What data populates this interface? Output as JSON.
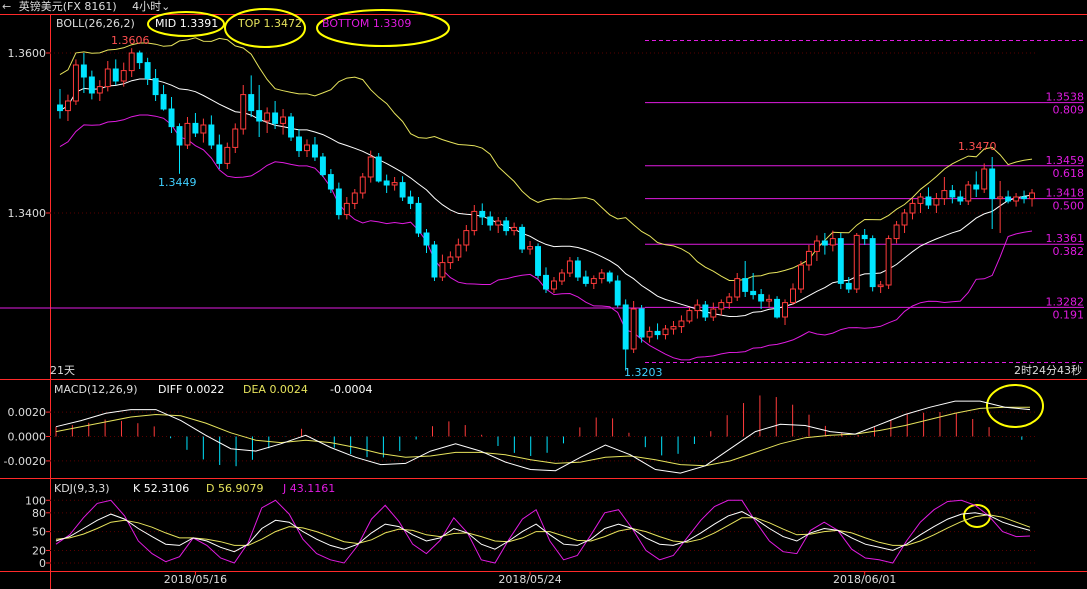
{
  "window": {
    "back_icon": "arrow-back-icon",
    "symbol": "英镑美元(FX 8161)",
    "timeframe": "4小时",
    "timeframe_icon": "chevron-down-icon"
  },
  "colors": {
    "bg": "#000000",
    "up": "#ff3b3b",
    "down": "#00e5ff",
    "mid": "#ffffff",
    "top": "#e6e35c",
    "bottom": "#e01be0",
    "fib": "#e01be0",
    "axis": "#ff2a2a",
    "diff": "#ffffff",
    "dea": "#e6e35c",
    "k": "#ffffff",
    "d": "#e6e35c",
    "j": "#e01be0",
    "annot": "#ffff00",
    "text": "#dddddd",
    "low_label": "#40d0ff",
    "high_label": "#ff5050"
  },
  "chart_data": [
    {
      "type": "candlestick",
      "title": "BOLL(26,26,2)",
      "header": {
        "name": "BOLL(26,26,2)",
        "mid": "MID 1.3391",
        "top": "TOP 1.3472",
        "bottom": "BOTTOM 1.3309"
      },
      "ylim": [
        1.3195,
        1.3625
      ],
      "y_ticks": [
        "1.3600",
        "1.3400"
      ],
      "y_tick_values": [
        1.36,
        1.34
      ],
      "x_labels": [
        {
          "label": "2018/05/16",
          "index": 17
        },
        {
          "label": "2018/05/24",
          "index": 59
        },
        {
          "label": "2018/06/01",
          "index": 101
        }
      ],
      "annotations": {
        "high": "1.3606",
        "low_1": "1.3449",
        "low_2": "1.3203",
        "high_2": "1.3470",
        "days": "21天",
        "countdown": "2时24分43秒"
      },
      "fib_levels": [
        {
          "price": 1.3538,
          "label": "1.3538",
          "ratio": "0.809"
        },
        {
          "price": 1.3459,
          "label": "1.3459",
          "ratio": "0.618"
        },
        {
          "price": 1.3418,
          "label": "1.3418",
          "ratio": "0.500"
        },
        {
          "price": 1.3361,
          "label": "1.3361",
          "ratio": "0.382"
        },
        {
          "price": 1.3282,
          "label": "1.3282",
          "ratio": "0.191"
        }
      ],
      "ohlc": [
        [
          1.3535,
          1.3555,
          1.3518,
          1.3528
        ],
        [
          1.3528,
          1.3548,
          1.3515,
          1.354
        ],
        [
          1.354,
          1.3592,
          1.3535,
          1.3585
        ],
        [
          1.3585,
          1.36,
          1.355,
          1.357
        ],
        [
          1.357,
          1.3578,
          1.3542,
          1.355
        ],
        [
          1.355,
          1.3566,
          1.354,
          1.3558
        ],
        [
          1.3558,
          1.359,
          1.3552,
          1.358
        ],
        [
          1.358,
          1.3592,
          1.356,
          1.3565
        ],
        [
          1.3565,
          1.3588,
          1.3558,
          1.3578
        ],
        [
          1.3578,
          1.3606,
          1.357,
          1.36
        ],
        [
          1.36,
          1.3603,
          1.358,
          1.3588
        ],
        [
          1.3588,
          1.3594,
          1.356,
          1.3568
        ],
        [
          1.3568,
          1.358,
          1.354,
          1.3548
        ],
        [
          1.3548,
          1.356,
          1.3528,
          1.353
        ],
        [
          1.353,
          1.3545,
          1.35,
          1.3508
        ],
        [
          1.3508,
          1.3512,
          1.3449,
          1.3485
        ],
        [
          1.3485,
          1.352,
          1.348,
          1.3512
        ],
        [
          1.3512,
          1.3525,
          1.3495,
          1.35
        ],
        [
          1.35,
          1.3518,
          1.3488,
          1.351
        ],
        [
          1.351,
          1.3522,
          1.348,
          1.3485
        ],
        [
          1.3485,
          1.3498,
          1.3455,
          1.3462
        ],
        [
          1.3462,
          1.3488,
          1.3455,
          1.3482
        ],
        [
          1.3482,
          1.3512,
          1.3475,
          1.3505
        ],
        [
          1.3505,
          1.356,
          1.3498,
          1.3548
        ],
        [
          1.3548,
          1.3572,
          1.352,
          1.3528
        ],
        [
          1.3528,
          1.356,
          1.3495,
          1.3515
        ],
        [
          1.3515,
          1.3532,
          1.35,
          1.3525
        ],
        [
          1.3525,
          1.354,
          1.3505,
          1.3512
        ],
        [
          1.3512,
          1.353,
          1.3498,
          1.352
        ],
        [
          1.352,
          1.3525,
          1.349,
          1.3495
        ],
        [
          1.3495,
          1.3505,
          1.347,
          1.3478
        ],
        [
          1.3478,
          1.3492,
          1.347,
          1.3485
        ],
        [
          1.3485,
          1.3495,
          1.3465,
          1.347
        ],
        [
          1.347,
          1.3475,
          1.3445,
          1.3448
        ],
        [
          1.3448,
          1.3455,
          1.3425,
          1.343
        ],
        [
          1.343,
          1.3438,
          1.3392,
          1.3398
        ],
        [
          1.3398,
          1.342,
          1.3392,
          1.3412
        ],
        [
          1.3412,
          1.343,
          1.3405,
          1.3425
        ],
        [
          1.3425,
          1.345,
          1.3418,
          1.3445
        ],
        [
          1.3445,
          1.3478,
          1.3438,
          1.347
        ],
        [
          1.347,
          1.3475,
          1.3438,
          1.344
        ],
        [
          1.344,
          1.3448,
          1.3425,
          1.3435
        ],
        [
          1.3435,
          1.3445,
          1.3428,
          1.3438
        ],
        [
          1.3438,
          1.3446,
          1.3415,
          1.342
        ],
        [
          1.342,
          1.3428,
          1.3405,
          1.3412
        ],
        [
          1.3412,
          1.342,
          1.337,
          1.3375
        ],
        [
          1.3375,
          1.338,
          1.335,
          1.336
        ],
        [
          1.336,
          1.3365,
          1.3315,
          1.332
        ],
        [
          1.332,
          1.3348,
          1.3315,
          1.3338
        ],
        [
          1.3338,
          1.3352,
          1.333,
          1.3345
        ],
        [
          1.3345,
          1.3368,
          1.334,
          1.336
        ],
        [
          1.336,
          1.3385,
          1.3352,
          1.3378
        ],
        [
          1.3378,
          1.341,
          1.3372,
          1.3402
        ],
        [
          1.3402,
          1.3412,
          1.3385,
          1.3395
        ],
        [
          1.3395,
          1.3402,
          1.3378,
          1.3385
        ],
        [
          1.3385,
          1.3395,
          1.3375,
          1.339
        ],
        [
          1.339,
          1.3395,
          1.3372,
          1.3378
        ],
        [
          1.3378,
          1.3388,
          1.3372,
          1.3382
        ],
        [
          1.3382,
          1.3386,
          1.335,
          1.3355
        ],
        [
          1.3355,
          1.3365,
          1.3348,
          1.3358
        ],
        [
          1.3358,
          1.3362,
          1.3318,
          1.3322
        ],
        [
          1.3322,
          1.3332,
          1.33,
          1.3305
        ],
        [
          1.3305,
          1.332,
          1.33,
          1.3315
        ],
        [
          1.3315,
          1.333,
          1.331,
          1.3325
        ],
        [
          1.3325,
          1.3345,
          1.332,
          1.334
        ],
        [
          1.334,
          1.3345,
          1.3315,
          1.332
        ],
        [
          1.332,
          1.3328,
          1.3308,
          1.3312
        ],
        [
          1.3312,
          1.3322,
          1.3305,
          1.3318
        ],
        [
          1.3318,
          1.333,
          1.3312,
          1.3325
        ],
        [
          1.3325,
          1.3328,
          1.3312,
          1.3315
        ],
        [
          1.3315,
          1.3322,
          1.3282,
          1.3285
        ],
        [
          1.3285,
          1.3292,
          1.3203,
          1.323
        ],
        [
          1.323,
          1.329,
          1.3225,
          1.328
        ],
        [
          1.328,
          1.3285,
          1.3238,
          1.3245
        ],
        [
          1.3245,
          1.3258,
          1.3238,
          1.3252
        ],
        [
          1.3252,
          1.3262,
          1.3242,
          1.3248
        ],
        [
          1.3248,
          1.326,
          1.3242,
          1.3255
        ],
        [
          1.3255,
          1.3265,
          1.3248,
          1.3258
        ],
        [
          1.3258,
          1.3272,
          1.325,
          1.3265
        ],
        [
          1.3265,
          1.3282,
          1.3262,
          1.3278
        ],
        [
          1.3278,
          1.3292,
          1.3268,
          1.3285
        ],
        [
          1.3285,
          1.329,
          1.3265,
          1.327
        ],
        [
          1.327,
          1.3288,
          1.3265,
          1.328
        ],
        [
          1.328,
          1.3292,
          1.3272,
          1.3288
        ],
        [
          1.3288,
          1.33,
          1.328,
          1.3295
        ],
        [
          1.3295,
          1.3325,
          1.329,
          1.3318
        ],
        [
          1.3318,
          1.334,
          1.3295,
          1.3302
        ],
        [
          1.3302,
          1.3325,
          1.3292,
          1.3298
        ],
        [
          1.3298,
          1.3305,
          1.328,
          1.329
        ],
        [
          1.329,
          1.3298,
          1.3282,
          1.3292
        ],
        [
          1.3292,
          1.3296,
          1.3268,
          1.327
        ],
        [
          1.327,
          1.3292,
          1.326,
          1.3288
        ],
        [
          1.3288,
          1.3312,
          1.3285,
          1.3305
        ],
        [
          1.3305,
          1.334,
          1.33,
          1.3335
        ],
        [
          1.3335,
          1.336,
          1.3328,
          1.3352
        ],
        [
          1.3352,
          1.3372,
          1.334,
          1.3365
        ],
        [
          1.3365,
          1.3375,
          1.3348,
          1.336
        ],
        [
          1.336,
          1.3378,
          1.3352,
          1.3368
        ],
        [
          1.3368,
          1.3375,
          1.3305,
          1.3312
        ],
        [
          1.3312,
          1.332,
          1.33,
          1.3305
        ],
        [
          1.3305,
          1.3375,
          1.33,
          1.3372
        ],
        [
          1.3372,
          1.338,
          1.336,
          1.3368
        ],
        [
          1.3368,
          1.3372,
          1.3302,
          1.3308
        ],
        [
          1.3308,
          1.3315,
          1.33,
          1.331
        ],
        [
          1.331,
          1.3372,
          1.3305,
          1.3368
        ],
        [
          1.3368,
          1.339,
          1.3362,
          1.3385
        ],
        [
          1.3385,
          1.3405,
          1.3375,
          1.34
        ],
        [
          1.34,
          1.3418,
          1.3392,
          1.3412
        ],
        [
          1.3412,
          1.3425,
          1.34,
          1.342
        ],
        [
          1.342,
          1.3432,
          1.3405,
          1.341
        ],
        [
          1.341,
          1.3425,
          1.34,
          1.3418
        ],
        [
          1.3418,
          1.3445,
          1.341,
          1.3428
        ],
        [
          1.3428,
          1.3435,
          1.3412,
          1.342
        ],
        [
          1.342,
          1.3428,
          1.341,
          1.3415
        ],
        [
          1.3415,
          1.344,
          1.341,
          1.3435
        ],
        [
          1.3435,
          1.3452,
          1.342,
          1.343
        ],
        [
          1.343,
          1.3462,
          1.3425,
          1.3455
        ],
        [
          1.3455,
          1.347,
          1.338,
          1.3418
        ],
        [
          1.3418,
          1.344,
          1.3375,
          1.342
        ],
        [
          1.342,
          1.3428,
          1.3412,
          1.3415
        ],
        [
          1.3415,
          1.3425,
          1.3408,
          1.342
        ],
        [
          1.342,
          1.3428,
          1.3412,
          1.3418
        ],
        [
          1.3418,
          1.343,
          1.3408,
          1.3425
        ]
      ]
    },
    {
      "type": "line",
      "title": "MACD(12,26,9)",
      "header": {
        "name": "MACD(12,26,9)",
        "diff": "DIFF 0.0022",
        "dea": "DEA 0.0024",
        "macd": "-0.0004"
      },
      "ylim": [
        -0.0034,
        0.0034
      ],
      "y_ticks": [
        "0.0020",
        "0.0000",
        "-0.0020"
      ],
      "y_tick_values": [
        0.002,
        0.0,
        -0.002
      ],
      "series": [
        {
          "name": "DIFF",
          "values": [
            0.0008,
            0.0013,
            0.0019,
            0.0022,
            0.0022,
            0.0013,
            0.0001,
            -0.001,
            -0.0012,
            -0.0006,
            0.0001,
            -0.0009,
            -0.0017,
            -0.0023,
            -0.0022,
            -0.0012,
            -0.0006,
            -0.0012,
            -0.0021,
            -0.0027,
            -0.0028,
            -0.0017,
            -0.0007,
            -0.0015,
            -0.0027,
            -0.003,
            -0.0024,
            -0.001,
            0.0004,
            0.001,
            0.0009,
            0.0004,
            0.0002,
            0.001,
            0.0018,
            0.0024,
            0.0029,
            0.0029,
            0.0024,
            0.0022
          ]
        },
        {
          "name": "DEA",
          "values": [
            0.0004,
            0.0008,
            0.0012,
            0.0016,
            0.0018,
            0.0017,
            0.0011,
            0.0003,
            -0.0003,
            -0.0005,
            -0.0003,
            -0.0005,
            -0.0009,
            -0.0014,
            -0.0017,
            -0.0016,
            -0.0013,
            -0.0013,
            -0.0015,
            -0.0019,
            -0.0022,
            -0.0021,
            -0.0017,
            -0.0016,
            -0.0019,
            -0.0023,
            -0.0024,
            -0.002,
            -0.0013,
            -0.0006,
            -0.0001,
            0.0001,
            0.0002,
            0.0005,
            0.0009,
            0.0014,
            0.0019,
            0.0023,
            0.0024,
            0.0024
          ]
        }
      ]
    },
    {
      "type": "line",
      "title": "KDJ(9,3,3)",
      "header": {
        "name": "KDJ(9,3,3)",
        "k": "K 52.3106",
        "d": "D 56.9079",
        "j": "J 43.1161"
      },
      "ylim": [
        -8,
        110
      ],
      "y_ticks": [
        "100",
        "80",
        "50",
        "20",
        "0"
      ],
      "y_tick_values": [
        100,
        80,
        50,
        20,
        0
      ],
      "series": [
        {
          "name": "K",
          "values": [
            35,
            42,
            55,
            68,
            78,
            70,
            55,
            42,
            30,
            28,
            40,
            35,
            25,
            18,
            30,
            55,
            68,
            65,
            50,
            38,
            28,
            22,
            30,
            48,
            62,
            58,
            45,
            35,
            40,
            55,
            48,
            30,
            22,
            35,
            50,
            62,
            45,
            30,
            28,
            38,
            55,
            62,
            55,
            40,
            30,
            28,
            35,
            48,
            62,
            75,
            82,
            70,
            55,
            42,
            35,
            48,
            55,
            52,
            40,
            30,
            25,
            20,
            30,
            45,
            58,
            70,
            78,
            80,
            76,
            65,
            58,
            52
          ]
        },
        {
          "name": "D",
          "values": [
            38,
            40,
            46,
            55,
            65,
            68,
            64,
            57,
            48,
            40,
            40,
            38,
            34,
            28,
            28,
            38,
            50,
            58,
            56,
            50,
            42,
            34,
            31,
            37,
            48,
            54,
            52,
            45,
            42,
            47,
            48,
            42,
            35,
            34,
            40,
            50,
            50,
            43,
            36,
            35,
            42,
            51,
            55,
            50,
            42,
            35,
            33,
            38,
            48,
            60,
            72,
            72,
            64,
            54,
            45,
            46,
            50,
            52,
            48,
            40,
            33,
            28,
            28,
            35,
            45,
            56,
            66,
            74,
            77,
            73,
            65,
            57
          ]
        },
        {
          "name": "J",
          "values": [
            30,
            45,
            72,
            95,
            100,
            75,
            35,
            15,
            2,
            10,
            40,
            28,
            8,
            0,
            32,
            88,
            100,
            78,
            38,
            15,
            5,
            0,
            28,
            70,
            92,
            66,
            30,
            15,
            36,
            72,
            48,
            5,
            0,
            37,
            70,
            85,
            35,
            5,
            12,
            45,
            80,
            85,
            55,
            20,
            5,
            12,
            40,
            68,
            90,
            100,
            100,
            66,
            35,
            18,
            15,
            52,
            65,
            52,
            22,
            8,
            5,
            0,
            35,
            65,
            85,
            98,
            100,
            92,
            75,
            50,
            42,
            43
          ]
        }
      ]
    }
  ]
}
